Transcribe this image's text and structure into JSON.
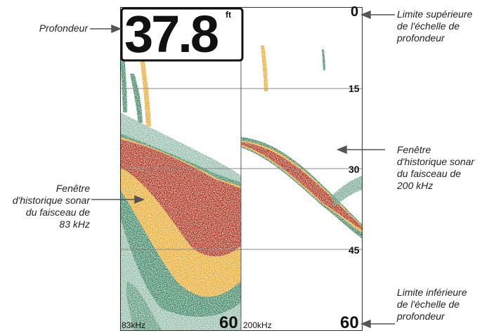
{
  "display": {
    "depth_value": "37.8",
    "depth_unit": "ft",
    "left_freq_label": "83kHz",
    "right_freq_label": "200kHz",
    "left_bottom_scale": "60",
    "scale_marks": [
      "0",
      "15",
      "30",
      "45",
      "60"
    ]
  },
  "callouts": {
    "depth": [
      "Profondeur"
    ],
    "upper_limit": [
      "Limite supérieure",
      "de l'échelle de",
      "profondeur"
    ],
    "beam_200": [
      "Fenêtre",
      "d'historique sonar",
      "du faisceau de",
      "200 kHz"
    ],
    "beam_83": [
      "Fenêtre",
      "d'historique sonar",
      "du faisceau de",
      "83 kHz"
    ],
    "lower_limit": [
      "Limite inférieure",
      "de l'échelle de",
      "profondeur"
    ]
  },
  "colors": {
    "grid": "#8a8a8a",
    "sonar_strong": "#a31d08",
    "sonar_mid": "#e8a21a",
    "sonar_weak": "#2c7a55",
    "frame": "#333333"
  }
}
